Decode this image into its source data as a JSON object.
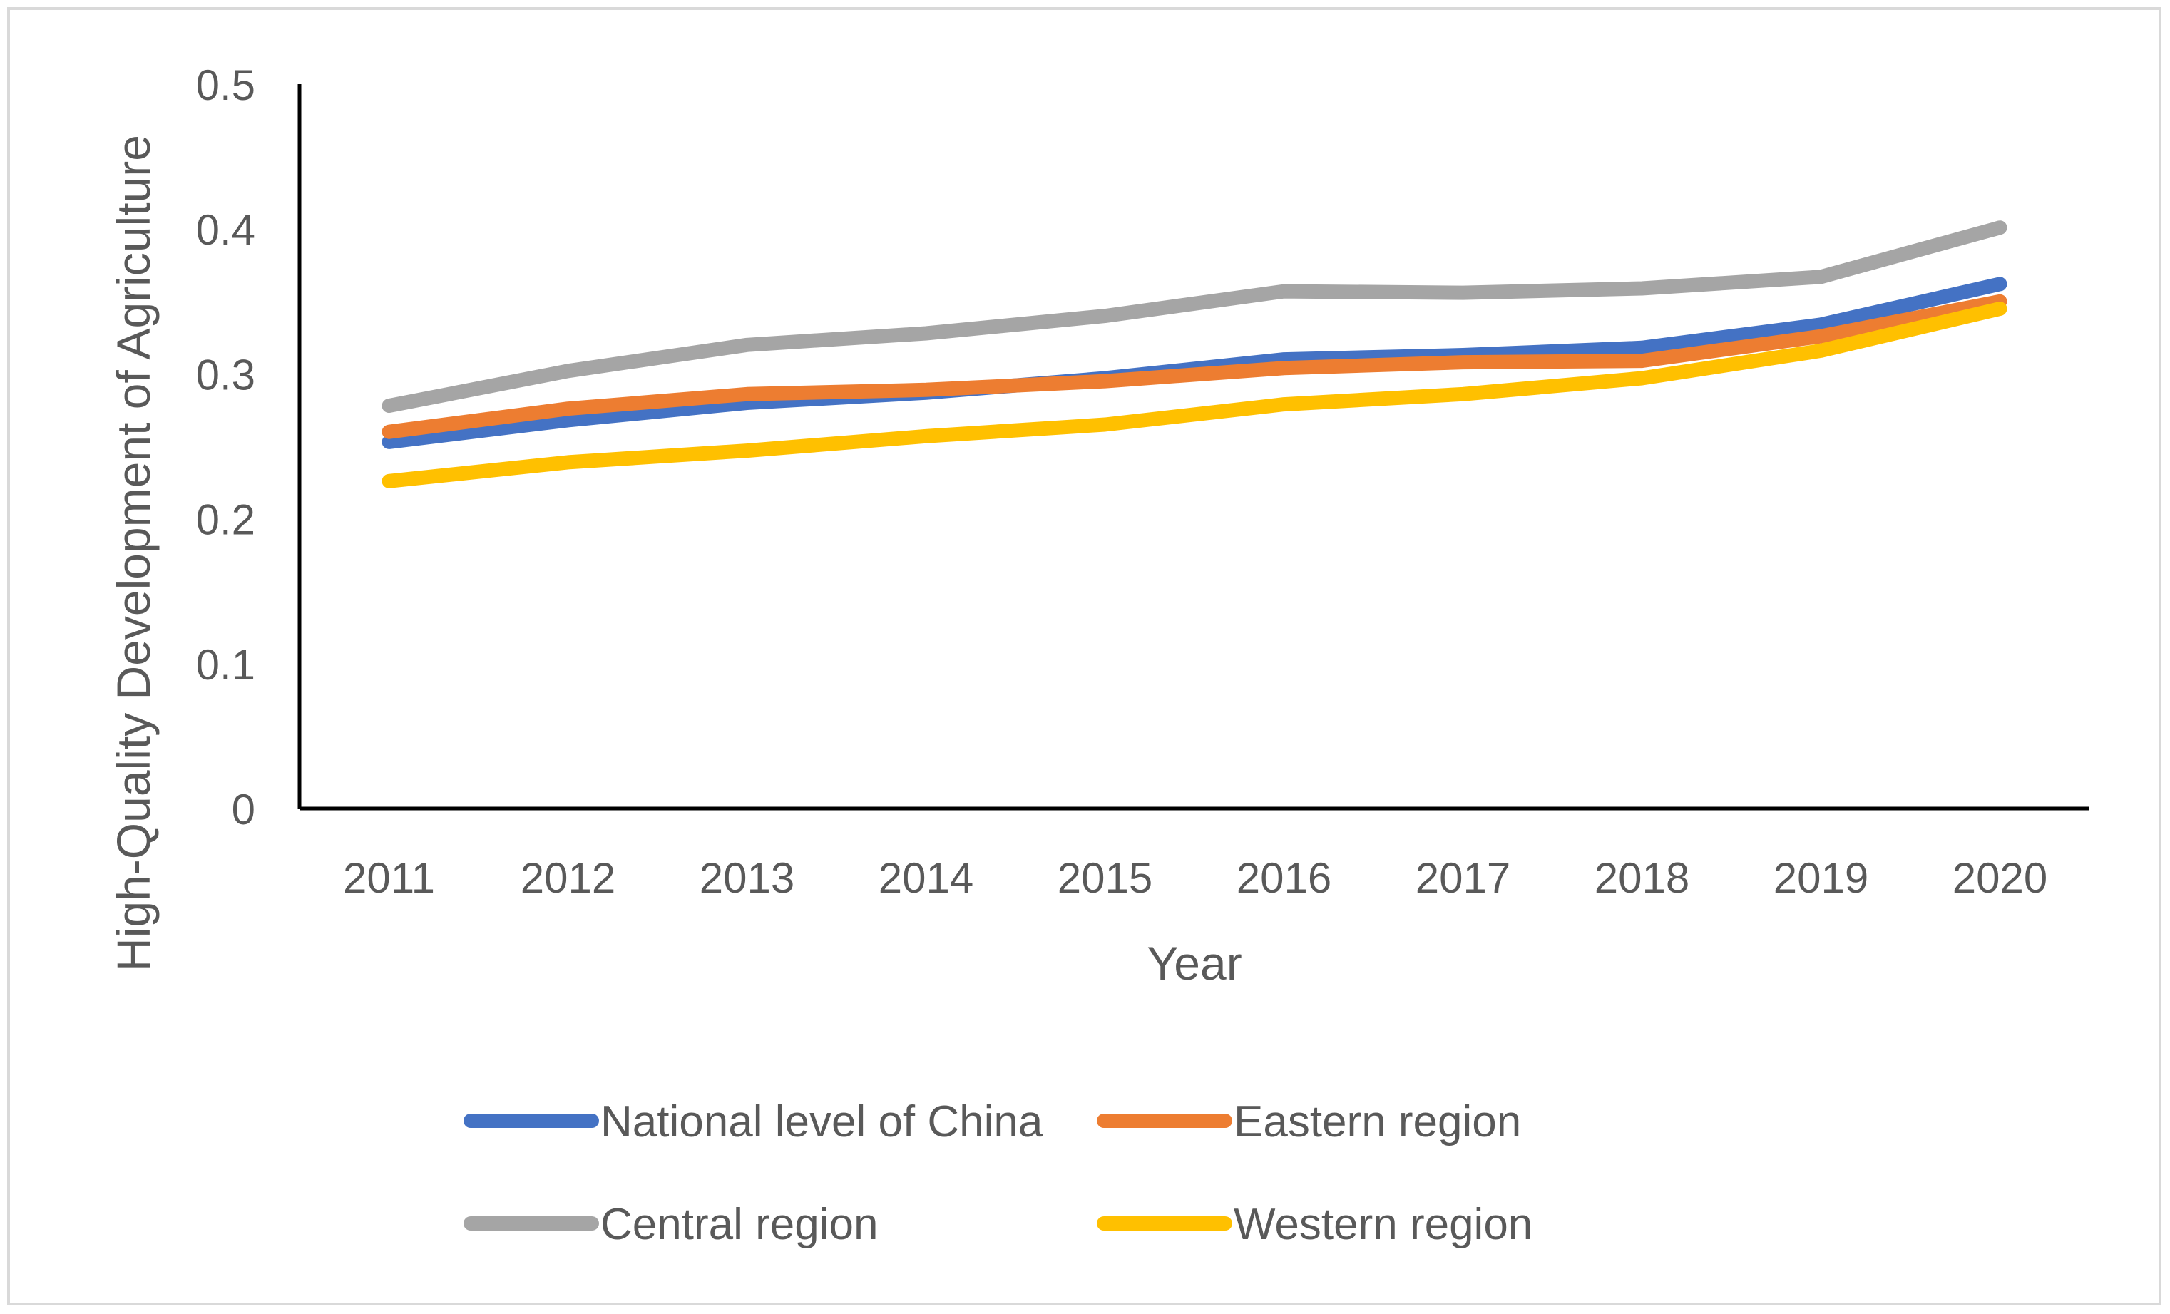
{
  "chart_data": {
    "type": "line",
    "title": "",
    "xlabel": "Year",
    "ylabel": "High-Quality Development of Agriculture",
    "categories": [
      "2011",
      "2012",
      "2013",
      "2014",
      "2015",
      "2016",
      "2017",
      "2018",
      "2019",
      "2020"
    ],
    "ylim": [
      0,
      0.5
    ],
    "yticks": [
      0,
      0.1,
      0.2,
      0.3,
      0.4,
      0.5
    ],
    "ytick_labels": [
      "0",
      "0.1",
      "0.2",
      "0.3",
      "0.4",
      "0.5"
    ],
    "grid": false,
    "legend_position": "bottom",
    "series": [
      {
        "name": "National level of China",
        "color": "#4472c4",
        "values": [
          0.253,
          0.268,
          0.28,
          0.287,
          0.297,
          0.31,
          0.313,
          0.318,
          0.334,
          0.362
        ]
      },
      {
        "name": "Eastern region",
        "color": "#ed7d31",
        "values": [
          0.26,
          0.276,
          0.286,
          0.289,
          0.295,
          0.304,
          0.308,
          0.309,
          0.326,
          0.35
        ]
      },
      {
        "name": "Central region",
        "color": "#a5a5a5",
        "values": [
          0.278,
          0.302,
          0.32,
          0.328,
          0.34,
          0.357,
          0.356,
          0.359,
          0.367,
          0.401
        ]
      },
      {
        "name": "Western region",
        "color": "#ffc000",
        "values": [
          0.226,
          0.239,
          0.247,
          0.257,
          0.265,
          0.279,
          0.286,
          0.297,
          0.316,
          0.345
        ]
      }
    ]
  }
}
